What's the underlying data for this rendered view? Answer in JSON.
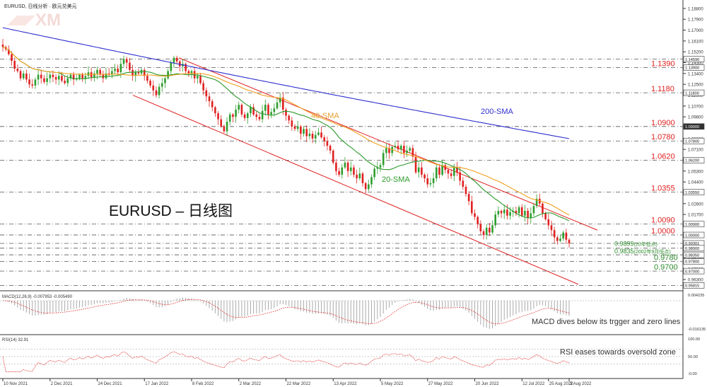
{
  "header": {
    "symbol_line": "EURUSD, 日线分析 · 欧元兑美元",
    "watermark": "XM"
  },
  "annotations": {
    "main_title": "EURUSD – 日线图",
    "sma200_label": "200-SMA",
    "sma40_label": "40-SMA",
    "sma20_label": "20-SMA",
    "macd_note": "MACD dives below its trgger and zero lines",
    "rsi_note": "RSI eases towards oversold zone"
  },
  "colors": {
    "background": "#ffffff",
    "bull": "#2e9e2e",
    "bear": "#e02020",
    "sma200": "#3030d0",
    "sma40": "#f0a020",
    "sma20": "#2a9a2a",
    "channel": "#e02020",
    "level_text": "#e02020",
    "support_text": "#2a8a2a",
    "grid": "#555555"
  },
  "chart_data": {
    "type": "candlestick",
    "instrument": "EURUSD",
    "timeframe": "daily",
    "x_ticks": [
      "10 Nov 2021",
      "2 Dec 2021",
      "24 Dec 2021",
      "17 Jan 2022",
      "8 Feb 2022",
      "2 Mar 2022",
      "22 Mar 2022",
      "13 Apr 2022",
      "5 May 2022",
      "27 May 2022",
      "20 Jun 2022",
      "12 Jul 2022",
      "3 Aug 2022",
      "25 Aug 2022"
    ],
    "y_ticks": [
      "1.18800",
      "1.17900",
      "1.17000",
      "1.16100",
      "1.15200",
      "1.14300",
      "1.13400",
      "1.12500",
      "1.11600",
      "1.10700",
      "1.09800",
      "1.08900",
      "1.08000",
      "1.07100",
      "1.06200",
      "1.05300",
      "1.04400",
      "1.03500",
      "1.02600",
      "1.01700",
      "1.00800",
      "0.99900",
      "0.99000",
      "0.98100",
      "0.97200",
      "0.96300"
    ],
    "ylim": [
      0.956,
      1.195
    ],
    "price_boxes": [
      "1.14590",
      "1.13900",
      "1.11800",
      "1.09000",
      "1.07800",
      "1.06200",
      "1.03550",
      "1.00900",
      "1.00000",
      "0.99301",
      "0.98900",
      "0.98350",
      "0.97800",
      "0.97000",
      "0.95815"
    ],
    "resistance_levels": [
      {
        "value": 1.139,
        "label": "1.1390"
      },
      {
        "value": 1.118,
        "label": "1.1180"
      },
      {
        "value": 1.09,
        "label": "1.0900"
      },
      {
        "value": 1.078,
        "label": "1.0780"
      },
      {
        "value": 1.062,
        "label": "1.0620"
      },
      {
        "value": 1.0355,
        "label": "1.0355"
      },
      {
        "value": 1.009,
        "label": "1.0090"
      },
      {
        "value": 1.0,
        "label": "1.0000"
      }
    ],
    "support_levels": [
      {
        "value": 0.9899,
        "label": "0.9899",
        "note": "(20年低点)"
      },
      {
        "value": 0.9835,
        "label": "0.9835",
        "note": "(2002年9月低点)"
      },
      {
        "value": 0.978,
        "label": "0.9780",
        "note": ""
      },
      {
        "value": 0.97,
        "label": "0.9700",
        "note": ""
      }
    ],
    "closes": [
      1.156,
      1.154,
      1.15,
      1.1445,
      1.138,
      1.136,
      1.13,
      1.134,
      1.129,
      1.125,
      1.124,
      1.129,
      1.133,
      1.13,
      1.127,
      1.13,
      1.133,
      1.131,
      1.129,
      1.132,
      1.128,
      1.126,
      1.13,
      1.133,
      1.129,
      1.13,
      1.133,
      1.13,
      1.132,
      1.135,
      1.131,
      1.134,
      1.137,
      1.133,
      1.13,
      1.134,
      1.133,
      1.136,
      1.138,
      1.135,
      1.142,
      1.146,
      1.143,
      1.137,
      1.132,
      1.135,
      1.134,
      1.137,
      1.132,
      1.128,
      1.124,
      1.12,
      1.116,
      1.123,
      1.126,
      1.13,
      1.136,
      1.143,
      1.147,
      1.144,
      1.14,
      1.142,
      1.136,
      1.134,
      1.136,
      1.13,
      1.132,
      1.126,
      1.12,
      1.115,
      1.111,
      1.106,
      1.101,
      1.096,
      1.09,
      1.086,
      1.094,
      1.1,
      1.098,
      1.104,
      1.108,
      1.1,
      1.097,
      1.101,
      1.106,
      1.1,
      1.098,
      1.096,
      1.103,
      1.108,
      1.1,
      1.102,
      1.105,
      1.11,
      1.114,
      1.104,
      1.099,
      1.095,
      1.09,
      1.088,
      1.09,
      1.084,
      1.088,
      1.082,
      1.084,
      1.08,
      1.083,
      1.085,
      1.081,
      1.078,
      1.074,
      1.07,
      1.06,
      1.053,
      1.05,
      1.056,
      1.06,
      1.053,
      1.056,
      1.05,
      1.047,
      1.051,
      1.043,
      1.038,
      1.042,
      1.048,
      1.055,
      1.056,
      1.058,
      1.068,
      1.072,
      1.068,
      1.073,
      1.074,
      1.071,
      1.074,
      1.068,
      1.07,
      1.072,
      1.065,
      1.052,
      1.056,
      1.05,
      1.047,
      1.042,
      1.043,
      1.047,
      1.056,
      1.05,
      1.058,
      1.054,
      1.051,
      1.049,
      1.056,
      1.052,
      1.045,
      1.04,
      1.034,
      1.028,
      1.018,
      1.015,
      1.009,
      1.003,
      1.0,
      1.006,
      1.002,
      1.008,
      1.017,
      1.02,
      1.018,
      1.021,
      1.016,
      1.019,
      1.02,
      1.018,
      1.023,
      1.016,
      1.02,
      1.014,
      1.018,
      1.024,
      1.03,
      1.026,
      1.018,
      1.013,
      1.008,
      1.004,
      0.998,
      0.995,
      0.997,
      1.002,
      0.996,
      0.993
    ],
    "macd_legend": "MACD(12,26,9) -0.007953 -0.005490",
    "macd_ticks": [
      "0.004235",
      "-0.016135"
    ],
    "rsi_legend": "RSI(14) 32.91",
    "rsi_ticks": [
      "100.00",
      "50.00",
      "-0.00"
    ]
  }
}
